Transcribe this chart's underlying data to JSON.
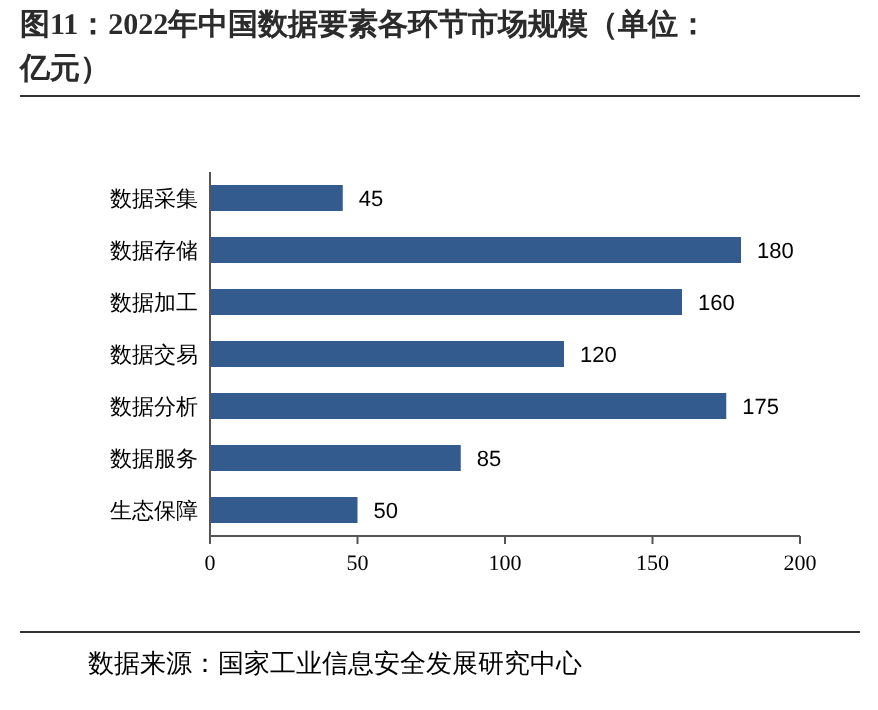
{
  "chart_data": {
    "type": "bar",
    "orientation": "horizontal",
    "title": "图11：2022年中国数据要素各环节市场规模（单位：亿元）",
    "categories": [
      "数据采集",
      "数据存储",
      "数据加工",
      "数据交易",
      "数据分析",
      "数据服务",
      "生态保障"
    ],
    "values": [
      45,
      180,
      160,
      120,
      175,
      85,
      50
    ],
    "color": "#335b8e",
    "data_labels": true,
    "xlim": [
      0,
      200
    ],
    "xticks": [
      0,
      50,
      100,
      150,
      200
    ],
    "grid": false,
    "annotations": [
      "数据来源：国家工业信息安全发展研究中心"
    ]
  }
}
